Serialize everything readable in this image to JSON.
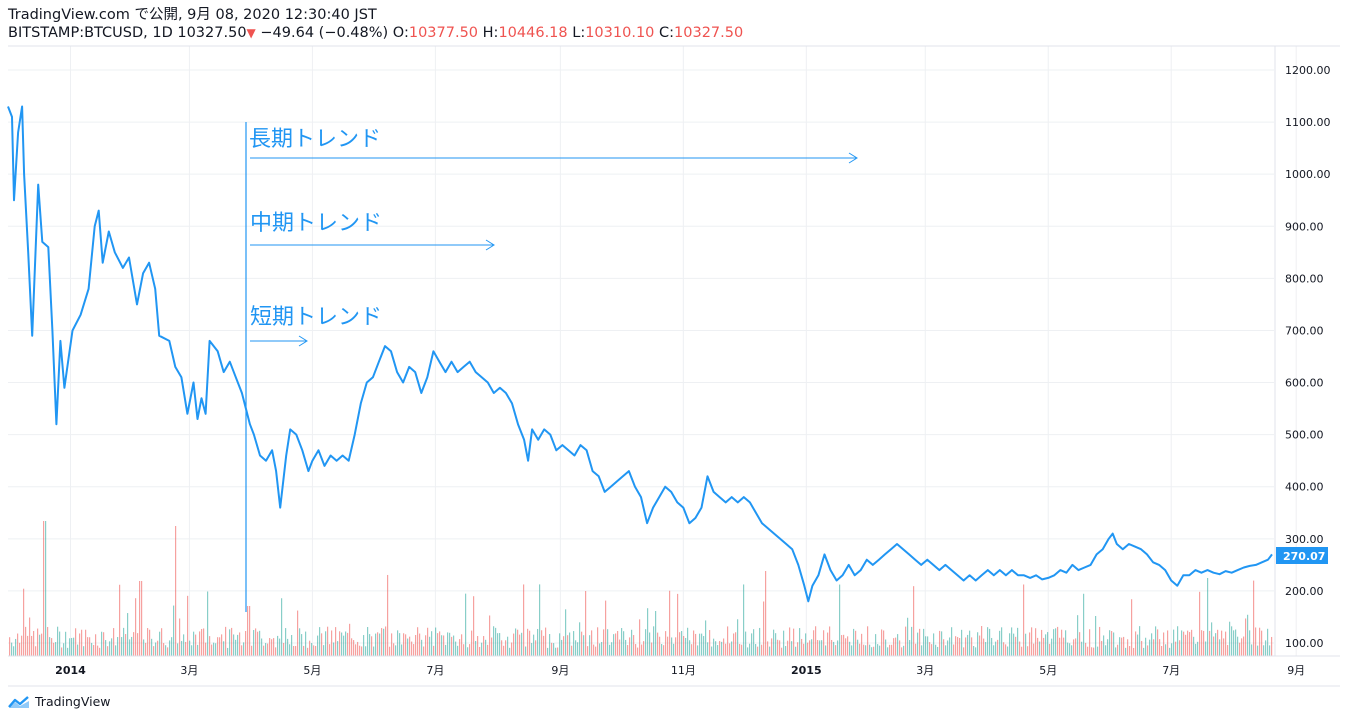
{
  "header": {
    "publish_line": "TradingView.com で公開, 9月 08, 2020 12:30:40 JST",
    "symbol": "BITSTAMP:BTCUSD, 1D",
    "last": "10327.50",
    "change": "−49.64 (−0.48%)",
    "o_label": "O:",
    "o_value": "10377.50",
    "h_label": "H:",
    "h_value": "10446.18",
    "l_label": "L:",
    "l_value": "10310.10",
    "c_label": "C:",
    "c_value": "10327.50"
  },
  "footer": {
    "brand": "TradingView"
  },
  "colors": {
    "line": "#2196f3",
    "vol_up": "#26a69a",
    "vol_down": "#ef5350",
    "grid": "#eef0f3",
    "price_tag": "#2196f3"
  },
  "chart_data": {
    "type": "line",
    "ylim": [
      80,
      1230
    ],
    "y_ticks": [
      "1200.00",
      "1100.00",
      "1000.00",
      "900.00",
      "800.00",
      "700.00",
      "600.00",
      "500.00",
      "400.00",
      "300.00",
      "200.00",
      "100.00"
    ],
    "y_tick_values": [
      1200,
      1100,
      1000,
      900,
      800,
      700,
      600,
      500,
      400,
      300,
      200,
      100
    ],
    "x_range": [
      0,
      700
    ],
    "x_ticks": [
      {
        "label": "2014",
        "day": 31
      },
      {
        "label": "3月",
        "day": 90
      },
      {
        "label": "5月",
        "day": 151
      },
      {
        "label": "7月",
        "day": 212
      },
      {
        "label": "9月",
        "day": 274
      },
      {
        "label": "11月",
        "day": 335
      },
      {
        "label": "2015",
        "day": 396
      },
      {
        "label": "3月",
        "day": 455
      },
      {
        "label": "5月",
        "day": 516
      },
      {
        "label": "7月",
        "day": 577
      },
      {
        "label": "9月",
        "day": 639
      }
    ],
    "last_price": "270.07",
    "last_price_value": 270.07,
    "price": [
      [
        0,
        1130
      ],
      [
        2,
        1110
      ],
      [
        3,
        950
      ],
      [
        5,
        1080
      ],
      [
        7,
        1130
      ],
      [
        8,
        1000
      ],
      [
        10,
        850
      ],
      [
        12,
        690
      ],
      [
        15,
        980
      ],
      [
        17,
        870
      ],
      [
        20,
        860
      ],
      [
        22,
        700
      ],
      [
        24,
        520
      ],
      [
        26,
        680
      ],
      [
        28,
        590
      ],
      [
        32,
        700
      ],
      [
        36,
        730
      ],
      [
        40,
        780
      ],
      [
        43,
        900
      ],
      [
        45,
        930
      ],
      [
        47,
        830
      ],
      [
        50,
        890
      ],
      [
        53,
        850
      ],
      [
        57,
        820
      ],
      [
        60,
        840
      ],
      [
        64,
        750
      ],
      [
        67,
        810
      ],
      [
        70,
        830
      ],
      [
        73,
        780
      ],
      [
        75,
        690
      ],
      [
        80,
        680
      ],
      [
        83,
        630
      ],
      [
        86,
        610
      ],
      [
        89,
        540
      ],
      [
        92,
        600
      ],
      [
        94,
        530
      ],
      [
        96,
        570
      ],
      [
        98,
        540
      ],
      [
        100,
        680
      ],
      [
        104,
        660
      ],
      [
        107,
        620
      ],
      [
        110,
        640
      ],
      [
        113,
        610
      ],
      [
        116,
        580
      ],
      [
        120,
        520
      ],
      [
        122,
        500
      ],
      [
        125,
        460
      ],
      [
        128,
        450
      ],
      [
        131,
        470
      ],
      [
        133,
        430
      ],
      [
        135,
        360
      ],
      [
        138,
        460
      ],
      [
        140,
        510
      ],
      [
        143,
        500
      ],
      [
        146,
        470
      ],
      [
        149,
        430
      ],
      [
        151,
        450
      ],
      [
        154,
        470
      ],
      [
        157,
        440
      ],
      [
        160,
        460
      ],
      [
        163,
        450
      ],
      [
        166,
        460
      ],
      [
        169,
        450
      ],
      [
        172,
        500
      ],
      [
        175,
        560
      ],
      [
        178,
        600
      ],
      [
        181,
        610
      ],
      [
        184,
        640
      ],
      [
        187,
        670
      ],
      [
        190,
        660
      ],
      [
        193,
        620
      ],
      [
        196,
        600
      ],
      [
        199,
        630
      ],
      [
        202,
        620
      ],
      [
        205,
        580
      ],
      [
        208,
        610
      ],
      [
        211,
        660
      ],
      [
        214,
        640
      ],
      [
        217,
        620
      ],
      [
        220,
        640
      ],
      [
        223,
        620
      ],
      [
        226,
        630
      ],
      [
        229,
        640
      ],
      [
        232,
        620
      ],
      [
        235,
        610
      ],
      [
        238,
        600
      ],
      [
        241,
        580
      ],
      [
        244,
        590
      ],
      [
        247,
        580
      ],
      [
        250,
        560
      ],
      [
        253,
        520
      ],
      [
        256,
        490
      ],
      [
        258,
        450
      ],
      [
        260,
        510
      ],
      [
        263,
        490
      ],
      [
        266,
        510
      ],
      [
        269,
        500
      ],
      [
        272,
        470
      ],
      [
        275,
        480
      ],
      [
        278,
        470
      ],
      [
        281,
        460
      ],
      [
        284,
        480
      ],
      [
        287,
        470
      ],
      [
        290,
        430
      ],
      [
        293,
        420
      ],
      [
        296,
        390
      ],
      [
        299,
        400
      ],
      [
        302,
        410
      ],
      [
        305,
        420
      ],
      [
        308,
        430
      ],
      [
        311,
        400
      ],
      [
        314,
        380
      ],
      [
        317,
        330
      ],
      [
        320,
        360
      ],
      [
        323,
        380
      ],
      [
        326,
        400
      ],
      [
        329,
        390
      ],
      [
        332,
        370
      ],
      [
        335,
        360
      ],
      [
        338,
        330
      ],
      [
        341,
        340
      ],
      [
        344,
        360
      ],
      [
        347,
        420
      ],
      [
        350,
        390
      ],
      [
        353,
        380
      ],
      [
        356,
        370
      ],
      [
        359,
        380
      ],
      [
        362,
        370
      ],
      [
        365,
        380
      ],
      [
        368,
        370
      ],
      [
        371,
        350
      ],
      [
        374,
        330
      ],
      [
        377,
        320
      ],
      [
        380,
        310
      ],
      [
        383,
        300
      ],
      [
        386,
        290
      ],
      [
        389,
        280
      ],
      [
        392,
        250
      ],
      [
        395,
        210
      ],
      [
        397,
        180
      ],
      [
        399,
        210
      ],
      [
        402,
        230
      ],
      [
        405,
        270
      ],
      [
        408,
        240
      ],
      [
        411,
        220
      ],
      [
        414,
        230
      ],
      [
        417,
        250
      ],
      [
        420,
        230
      ],
      [
        423,
        240
      ],
      [
        426,
        260
      ],
      [
        429,
        250
      ],
      [
        432,
        260
      ],
      [
        435,
        270
      ],
      [
        438,
        280
      ],
      [
        441,
        290
      ],
      [
        444,
        280
      ],
      [
        447,
        270
      ],
      [
        450,
        260
      ],
      [
        453,
        250
      ],
      [
        456,
        260
      ],
      [
        459,
        250
      ],
      [
        462,
        240
      ],
      [
        465,
        250
      ],
      [
        468,
        240
      ],
      [
        471,
        230
      ],
      [
        474,
        220
      ],
      [
        477,
        230
      ],
      [
        480,
        220
      ],
      [
        483,
        230
      ],
      [
        486,
        240
      ],
      [
        489,
        230
      ],
      [
        492,
        240
      ],
      [
        495,
        230
      ],
      [
        498,
        240
      ],
      [
        501,
        230
      ],
      [
        504,
        230
      ],
      [
        507,
        225
      ],
      [
        510,
        230
      ],
      [
        513,
        222
      ],
      [
        516,
        225
      ],
      [
        519,
        230
      ],
      [
        522,
        240
      ],
      [
        525,
        235
      ],
      [
        528,
        250
      ],
      [
        531,
        240
      ],
      [
        534,
        245
      ],
      [
        537,
        250
      ],
      [
        540,
        270
      ],
      [
        543,
        280
      ],
      [
        546,
        300
      ],
      [
        548,
        310
      ],
      [
        550,
        290
      ],
      [
        553,
        280
      ],
      [
        556,
        290
      ],
      [
        559,
        285
      ],
      [
        562,
        280
      ],
      [
        565,
        270
      ],
      [
        568,
        255
      ],
      [
        571,
        250
      ],
      [
        574,
        240
      ],
      [
        577,
        220
      ],
      [
        580,
        210
      ],
      [
        583,
        230
      ],
      [
        586,
        230
      ],
      [
        589,
        240
      ],
      [
        592,
        235
      ],
      [
        595,
        240
      ],
      [
        598,
        235
      ],
      [
        601,
        232
      ],
      [
        604,
        238
      ],
      [
        607,
        235
      ],
      [
        610,
        240
      ],
      [
        613,
        245
      ],
      [
        616,
        248
      ],
      [
        619,
        250
      ],
      [
        622,
        255
      ],
      [
        625,
        260
      ],
      [
        627,
        270
      ]
    ]
  },
  "annotations": {
    "long": "長期トレンド",
    "mid": "中期トレンド",
    "short": "短期トレンド"
  }
}
